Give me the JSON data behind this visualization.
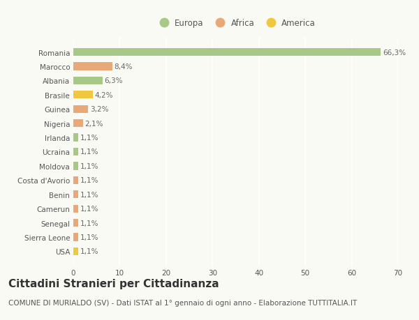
{
  "countries": [
    "Romania",
    "Marocco",
    "Albania",
    "Brasile",
    "Guinea",
    "Nigeria",
    "Irlanda",
    "Ucraina",
    "Moldova",
    "Costa d'Avorio",
    "Benin",
    "Camerun",
    "Senegal",
    "Sierra Leone",
    "USA"
  ],
  "values": [
    66.3,
    8.4,
    6.3,
    4.2,
    3.2,
    2.1,
    1.1,
    1.1,
    1.1,
    1.1,
    1.1,
    1.1,
    1.1,
    1.1,
    1.1
  ],
  "labels": [
    "66,3%",
    "8,4%",
    "6,3%",
    "4,2%",
    "3,2%",
    "2,1%",
    "1,1%",
    "1,1%",
    "1,1%",
    "1,1%",
    "1,1%",
    "1,1%",
    "1,1%",
    "1,1%",
    "1,1%"
  ],
  "colors": [
    "#a8c888",
    "#e8a878",
    "#a8c888",
    "#f0c840",
    "#e8a878",
    "#e8a878",
    "#a8c888",
    "#a8c888",
    "#a8c888",
    "#e8a878",
    "#e8a878",
    "#e8a878",
    "#e8a878",
    "#e8a878",
    "#f0c840"
  ],
  "legend_labels": [
    "Europa",
    "Africa",
    "America"
  ],
  "legend_colors": [
    "#a8c888",
    "#e8a878",
    "#f0c840"
  ],
  "title": "Cittadini Stranieri per Cittadinanza",
  "subtitle": "COMUNE DI MURIALDO (SV) - Dati ISTAT al 1° gennaio di ogni anno - Elaborazione TUTTITALIA.IT",
  "xlim": [
    0,
    70
  ],
  "xticks": [
    0,
    10,
    20,
    30,
    40,
    50,
    60,
    70
  ],
  "bg_color": "#fafaf5",
  "plot_bg_color": "#fafaf5",
  "grid_color": "#ffffff",
  "bar_height": 0.55,
  "title_fontsize": 11,
  "subtitle_fontsize": 7.5,
  "label_fontsize": 7.5,
  "tick_fontsize": 7.5,
  "legend_fontsize": 8.5
}
